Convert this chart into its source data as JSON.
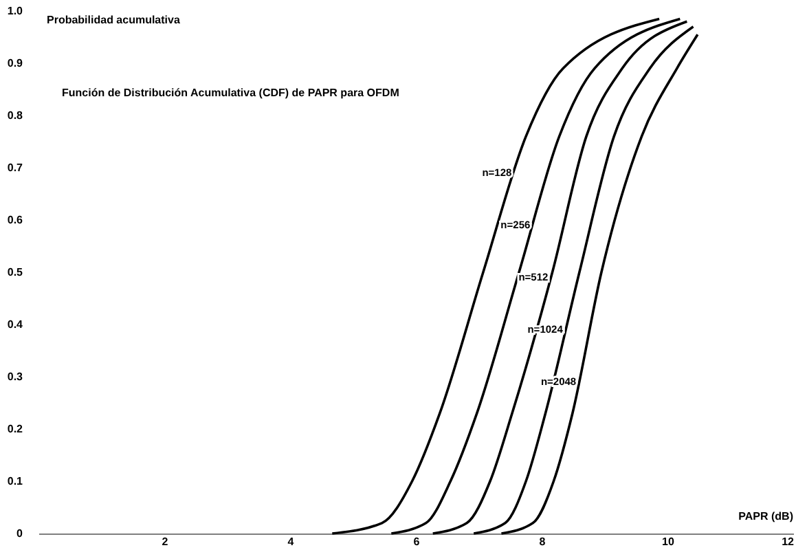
{
  "chart_data": {
    "type": "line",
    "title": "Función de Distribución Acumulativa (CDF) de PAPR para OFDM",
    "xlabel": "PAPR (dB)",
    "ylabel": "Probabilidad acumulativa",
    "xlim": [
      0,
      12
    ],
    "xticks": [
      2,
      4,
      6,
      8,
      10,
      12
    ],
    "ylim": [
      0,
      1
    ],
    "yticks": [
      {
        "value": 0,
        "label": "0"
      },
      0.1,
      0.2,
      0.3,
      0.4,
      0.5,
      0.6,
      0.7,
      0.8,
      0.9,
      {
        "value": 1,
        "label": "1.0"
      }
    ],
    "grid": false,
    "marker": "none",
    "line_style": "solid",
    "series": [
      {
        "name": "n=128",
        "color": "#000000",
        "x": [
          4.67,
          5.46,
          5.94,
          6.38,
          7.07,
          7.75,
          8.34,
          9.87
        ],
        "values": [
          0,
          0.02,
          0.1,
          0.23,
          0.5,
          0.76,
          0.89,
          0.985
        ]
      },
      {
        "name": "n=256",
        "color": "#000000",
        "x": [
          5.61,
          6.16,
          6.55,
          6.97,
          7.64,
          8.28,
          8.84,
          10.2
        ],
        "values": [
          0,
          0.02,
          0.1,
          0.23,
          0.5,
          0.76,
          0.89,
          0.985
        ]
      },
      {
        "name": "n=512",
        "color": "#000000",
        "x": [
          6.27,
          6.81,
          7.18,
          7.53,
          8.17,
          8.71,
          9.28,
          10.31
        ],
        "values": [
          0,
          0.02,
          0.1,
          0.23,
          0.5,
          0.76,
          0.89,
          0.98
        ]
      },
      {
        "name": "n=1024",
        "color": "#000000",
        "x": [
          6.92,
          7.42,
          7.75,
          8.06,
          8.6,
          9.15,
          9.72,
          10.41
        ],
        "values": [
          0,
          0.02,
          0.1,
          0.23,
          0.5,
          0.76,
          0.89,
          0.97
        ]
      },
      {
        "name": "n=2048",
        "color": "#000000",
        "x": [
          7.36,
          7.86,
          8.19,
          8.49,
          8.95,
          9.59,
          10.15,
          10.48
        ],
        "values": [
          0,
          0.02,
          0.1,
          0.23,
          0.5,
          0.76,
          0.89,
          0.955
        ]
      }
    ]
  }
}
